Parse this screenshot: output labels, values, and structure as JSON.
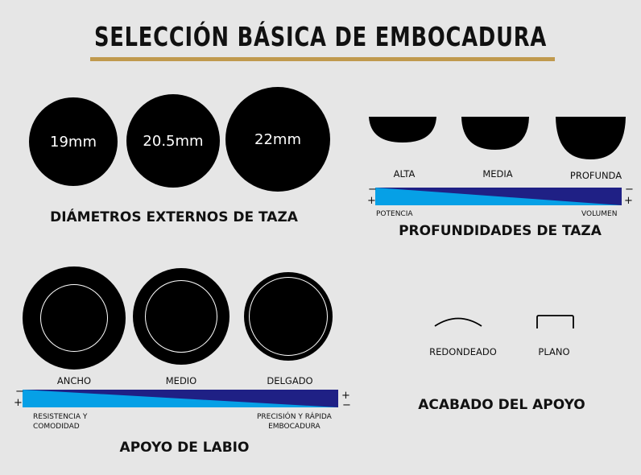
{
  "title": "SELECCIÓN BÁSICA DE EMBOCADURA",
  "colors": {
    "background": "#e6e6e6",
    "gold_rule": "#c09a4e",
    "bar_light": "#06a0e6",
    "bar_dark": "#1f2085"
  },
  "diameters": {
    "heading": "DIÁMETROS EXTERNOS DE TAZA",
    "items": [
      "19mm",
      "20.5mm",
      "22mm"
    ]
  },
  "depths": {
    "heading": "PROFUNDIDADES DE TAZA",
    "items": [
      "ALTA",
      "MEDIA",
      "PROFUNDA"
    ],
    "scale_left": "POTENCIA",
    "scale_right": "VOLUMEN",
    "minus": "−",
    "plus": "+"
  },
  "rims": {
    "heading": "APOYO DE LABIO",
    "items": [
      "ANCHO",
      "MEDIO",
      "DELGADO"
    ],
    "scale_left_1": "RESISTENCIA Y",
    "scale_left_2": "COMODIDAD",
    "scale_right_1": "PRECISIÓN Y RÁPIDA",
    "scale_right_2": "EMBOCADURA",
    "minus": "−",
    "plus": "+"
  },
  "finish": {
    "heading": "ACABADO DEL APOYO",
    "items": [
      "REDONDEADO",
      "PLANO"
    ]
  }
}
